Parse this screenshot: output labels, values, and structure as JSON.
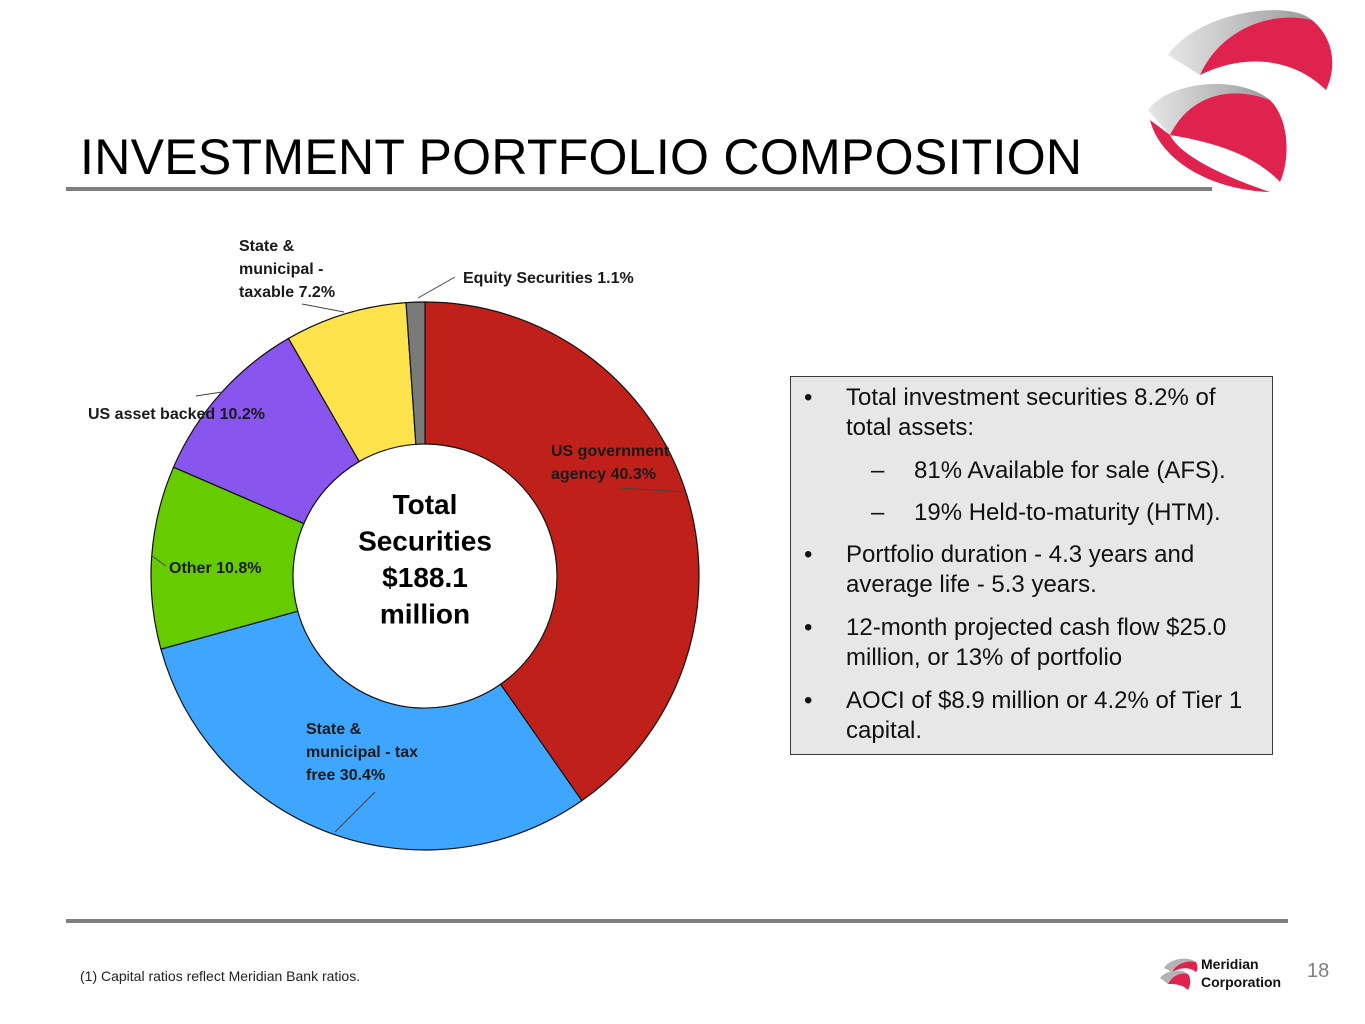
{
  "slide": {
    "title": "INVESTMENT PORTFOLIO COMPOSITION",
    "footnote": "(1) Capital ratios reflect Meridian Bank ratios.",
    "page_number": "18",
    "brand": {
      "line1": "Meridian",
      "line2": "Corporation",
      "colors": {
        "red": "#e0234e",
        "gray": "#b3b3b3"
      }
    }
  },
  "chart_data": {
    "type": "pie",
    "variant": "donut",
    "title": "Total Securities $188.1 million",
    "center_text": [
      "Total",
      "Securities",
      "$188.1",
      "million"
    ],
    "legend": "none",
    "slices": [
      {
        "name": "US government agency",
        "value": 40.3,
        "label_lines": [
          "US government",
          "agency 40.3%"
        ],
        "color": "#c0201a"
      },
      {
        "name": "State & municipal - tax free",
        "value": 30.4,
        "label_lines": [
          "State &",
          "municipal - tax",
          "free 30.4%"
        ],
        "color": "#3ea6ff"
      },
      {
        "name": "Other",
        "value": 10.8,
        "label_lines": [
          "Other 10.8%"
        ],
        "color": "#66cc00"
      },
      {
        "name": "US asset backed",
        "value": 10.2,
        "label_lines": [
          "US asset backed 10.2%"
        ],
        "color": "#8855ee"
      },
      {
        "name": "State & municipal - taxable",
        "value": 7.2,
        "label_lines": [
          "State &",
          "municipal -",
          "taxable 7.2%"
        ],
        "color": "#ffe34d"
      },
      {
        "name": "Equity Securities",
        "value": 1.1,
        "label_lines": [
          "Equity Securities 1.1%"
        ],
        "color": "#7a7a7a"
      }
    ]
  },
  "bullets": [
    {
      "level": 1,
      "text": "Total investment securities 8.2% of total assets:"
    },
    {
      "level": 2,
      "text": "81% Available for sale (AFS)."
    },
    {
      "level": 2,
      "text": "19% Held-to-maturity (HTM)."
    },
    {
      "level": 1,
      "text": "Portfolio duration - 4.3 years and average life - 5.3 years."
    },
    {
      "level": 1,
      "text": "12-month projected cash flow $25.0 million, or 13% of portfolio"
    },
    {
      "level": 1,
      "text": "AOCI of $8.9 million or 4.2% of Tier 1 capital."
    }
  ]
}
